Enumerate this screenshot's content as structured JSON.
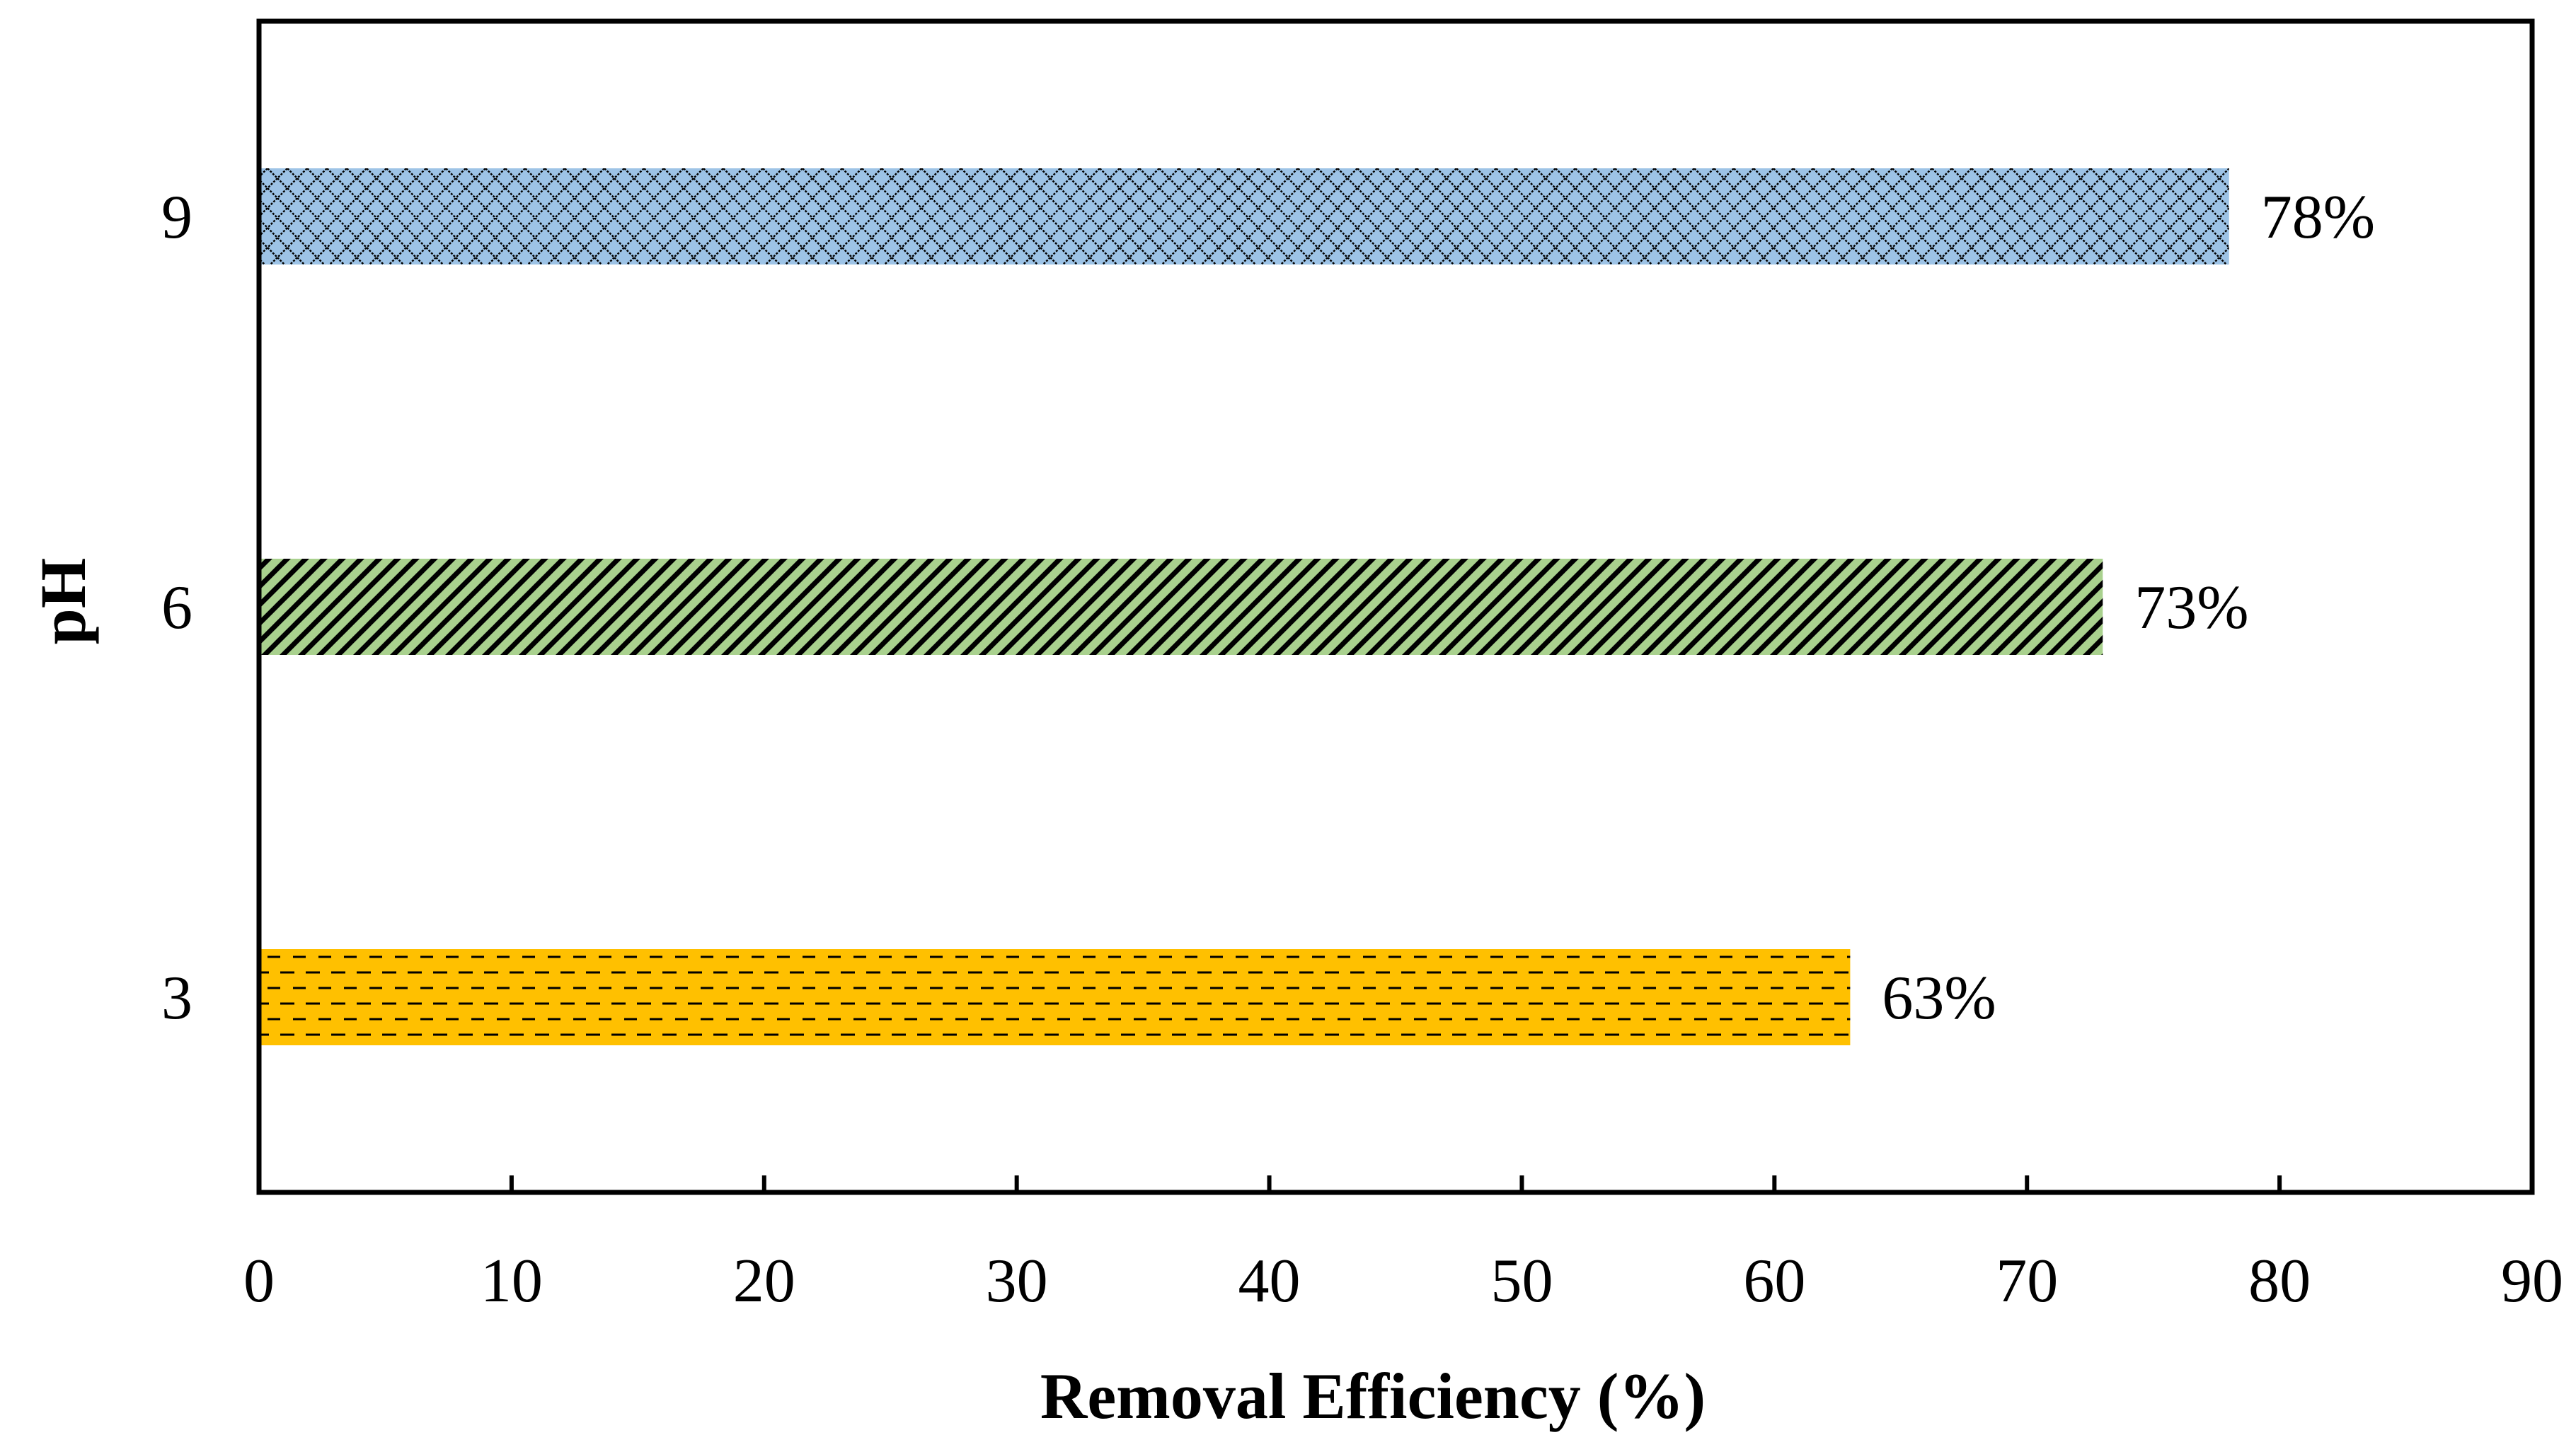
{
  "chart_data": {
    "type": "bar",
    "orientation": "horizontal",
    "title": "",
    "xlabel": "Removal Efficiency (%)",
    "ylabel": "pH",
    "xlim": [
      0,
      90
    ],
    "x_ticks": [
      "0",
      "10",
      "20",
      "30",
      "40",
      "50",
      "60",
      "70",
      "80",
      "90"
    ],
    "grid": false,
    "categories": [
      "3",
      "6",
      "9"
    ],
    "values": [
      63,
      73,
      78
    ],
    "data_labels": [
      "63%",
      "73%",
      "78%"
    ],
    "bar_colors": [
      "#ffc000",
      "#a9d18e",
      "#9dc3e6"
    ],
    "bar_patterns": [
      "dashed-horizontal",
      "diagonal",
      "crosshatch"
    ]
  }
}
